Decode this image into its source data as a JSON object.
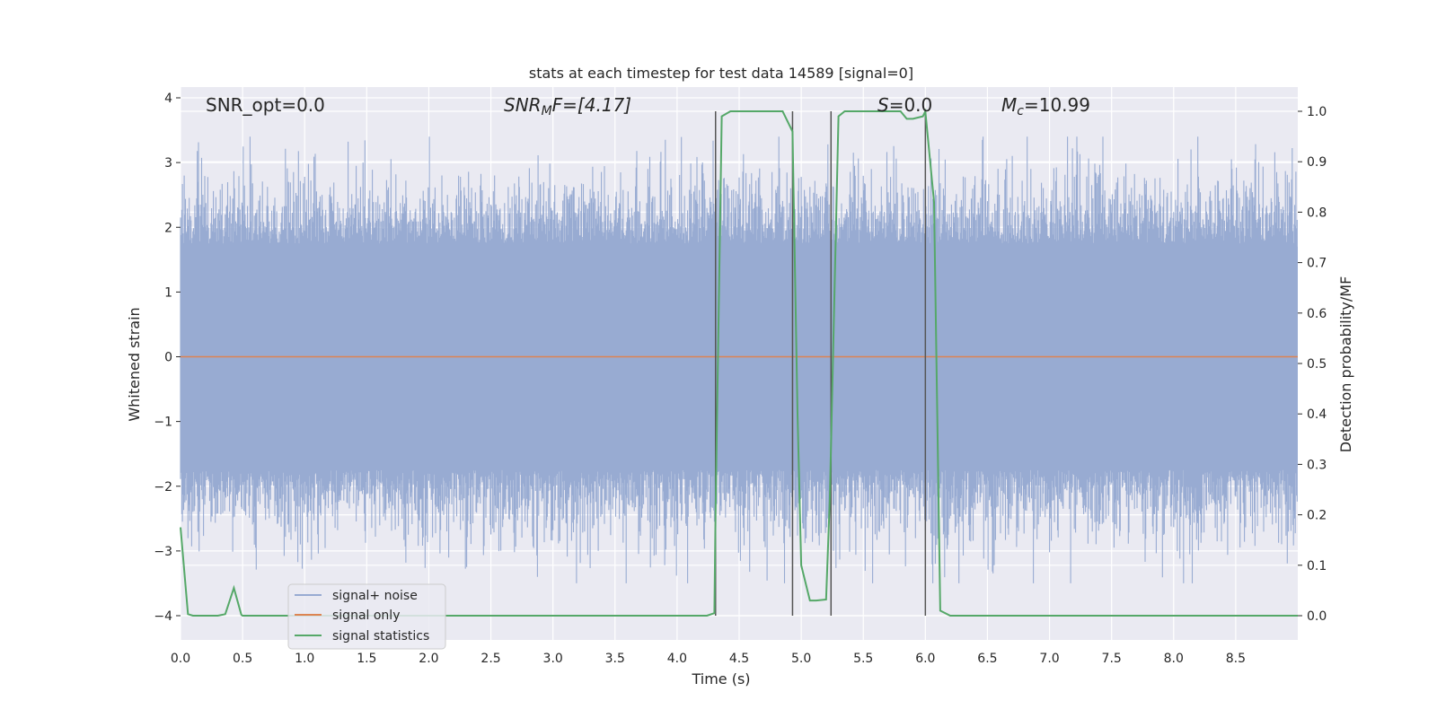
{
  "chart_data": {
    "type": "line",
    "title": "stats at each timestep for test data 14589 [signal=0]",
    "xlabel": "Time (s)",
    "ylabel": "Whitened strain",
    "y2label": "Detection probability/MF",
    "xlim": [
      0.0,
      9.0
    ],
    "ylim": [
      -4.4,
      4.2
    ],
    "y2lim": [
      -0.047,
      1.047
    ],
    "x_ticks": [
      "0.0",
      "0.5",
      "1.0",
      "1.5",
      "2.0",
      "2.5",
      "3.0",
      "3.5",
      "4.0",
      "4.5",
      "5.0",
      "5.5",
      "6.0",
      "6.5",
      "7.0",
      "7.5",
      "8.0",
      "8.5"
    ],
    "y_ticks": [
      "4",
      "3",
      "2",
      "1",
      "0",
      "−1",
      "−2",
      "−3",
      "−4"
    ],
    "y2_ticks": [
      "1.0",
      "0.9",
      "0.8",
      "0.7",
      "0.6",
      "0.5",
      "0.4",
      "0.3",
      "0.2",
      "0.1",
      "0.0"
    ],
    "grid": true,
    "legend_position": "lower-left",
    "colors": {
      "background": "#eaeaf2",
      "grid": "#ffffff",
      "noise": "#98abd2",
      "signal_only": "#dd8452",
      "statistics": "#55a868",
      "vlines": "#555555"
    },
    "annotations": {
      "snr_opt": "SNR_opt=0.0",
      "snr_mf_main": "SNR",
      "snr_mf_sub": "M",
      "snr_mf_rest": "F=[4.17]",
      "s_main": "S",
      "s_rest": "=0.0",
      "mc_main": "M",
      "mc_sub": "c",
      "mc_rest": "=10.99"
    },
    "series": [
      {
        "name": "signal+ noise",
        "description_type": "noise",
        "envelope_y": [
          -2.9,
          3.4
        ],
        "core_y": [
          -1.7,
          1.7
        ]
      },
      {
        "name": "signal only",
        "x": [
          0.0,
          9.0
        ],
        "y": [
          0.0,
          0.0
        ]
      },
      {
        "name": "signal statistics",
        "axis": "right",
        "x": [
          0.0,
          0.06,
          0.1,
          0.2,
          0.3,
          0.36,
          0.43,
          0.49,
          0.5,
          1.0,
          2.0,
          3.0,
          4.0,
          4.24,
          4.3,
          4.31,
          4.36,
          4.43,
          4.5,
          4.7,
          4.85,
          4.93,
          4.97,
          5.0,
          5.07,
          5.12,
          5.2,
          5.23,
          5.3,
          5.35,
          5.5,
          5.7,
          5.8,
          5.85,
          5.9,
          5.98,
          6.0,
          6.07,
          6.12,
          6.2,
          7.0,
          8.0,
          9.0
        ],
        "y": [
          0.175,
          0.003,
          0.0,
          0.0,
          0.0,
          0.003,
          0.055,
          0.002,
          0.0,
          0.0,
          0.0,
          0.0,
          0.0,
          0.0,
          0.005,
          0.2,
          0.99,
          1.0,
          1.0,
          1.0,
          1.0,
          0.96,
          0.4,
          0.1,
          0.03,
          0.03,
          0.032,
          0.23,
          0.99,
          1.0,
          1.0,
          1.0,
          1.0,
          0.985,
          0.985,
          0.99,
          1.0,
          0.82,
          0.01,
          0.0,
          0.0,
          0.0,
          0.0
        ]
      }
    ],
    "vlines_x": [
      4.31,
      4.93,
      5.24,
      6.0
    ],
    "legend": [
      "signal+ noise",
      "signal only",
      "signal statistics"
    ]
  }
}
